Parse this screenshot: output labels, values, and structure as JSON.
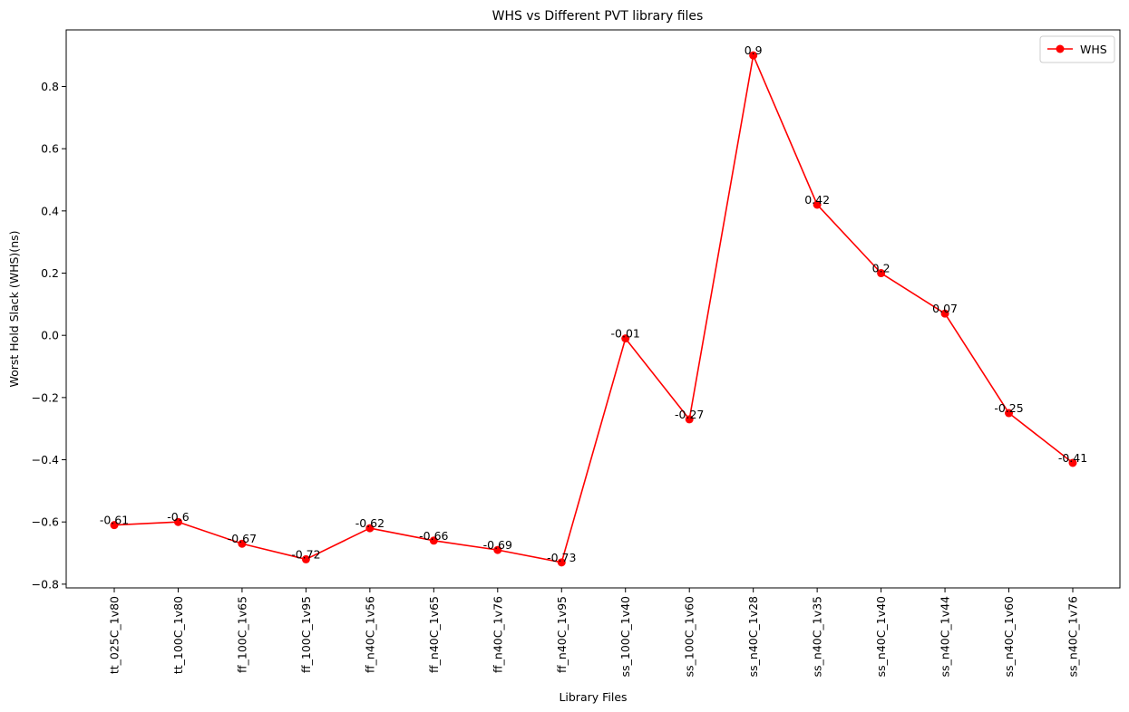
{
  "chart_data": {
    "type": "line",
    "title": "WHS vs Different PVT library files",
    "xlabel": "Library Files",
    "ylabel": "Worst Hold Slack (WHS)(ns)",
    "categories": [
      "tt_025C_1v80",
      "tt_100C_1v80",
      "ff_100C_1v65",
      "ff_100C_1v95",
      "ff_n40C_1v56",
      "ff_n40C_1v65",
      "ff_n40C_1v76",
      "ff_n40C_1v95",
      "ss_100C_1v40",
      "ss_100C_1v60",
      "ss_n40C_1v28",
      "ss_n40C_1v35",
      "ss_n40C_1v40",
      "ss_n40C_1v44",
      "ss_n40C_1v60",
      "ss_n40C_1v76"
    ],
    "series": [
      {
        "name": "WHS",
        "color": "#ff0000",
        "marker": "circle",
        "values": [
          -0.61,
          -0.6,
          -0.67,
          -0.72,
          -0.62,
          -0.66,
          -0.69,
          -0.73,
          -0.01,
          -0.27,
          0.9,
          0.42,
          0.2,
          0.07,
          -0.25,
          -0.41
        ],
        "labels": [
          "-0.61",
          "-0.6",
          "-0.67",
          "-0.72",
          "-0.62",
          "-0.66",
          "-0.69",
          "-0.73",
          "-0.01",
          "-0.27",
          "0.9",
          "0.42",
          "0.2",
          "0.07",
          "-0.25",
          "-0.41"
        ]
      }
    ],
    "yticks": [
      "−0.8",
      "−0.6",
      "−0.4",
      "−0.2",
      "0.0",
      "0.2",
      "0.4",
      "0.6",
      "0.8"
    ],
    "ytick_values": [
      -0.8,
      -0.6,
      -0.4,
      -0.2,
      0.0,
      0.2,
      0.4,
      0.6,
      0.8
    ],
    "ylim": [
      -0.812,
      0.982
    ],
    "grid": false,
    "legend_position": "top-right"
  }
}
